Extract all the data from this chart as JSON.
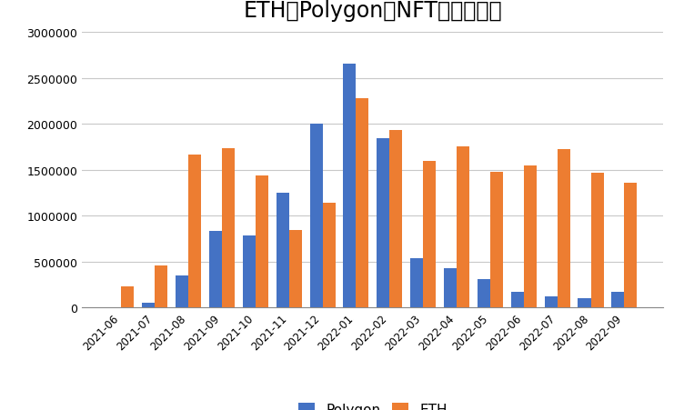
{
  "title": "ETH与Polygon的NFT交易量对比",
  "categories": [
    "2021-06",
    "2021-07",
    "2021-08",
    "2021-09",
    "2021-10",
    "2021-11",
    "2021-12",
    "2022-01",
    "2022-02",
    "2022-03",
    "2022-04",
    "2022-05",
    "2022-06",
    "2022-07",
    "2022-08",
    "2022-09"
  ],
  "polygon_values": [
    0,
    50000,
    350000,
    830000,
    780000,
    1250000,
    2000000,
    2650000,
    1840000,
    530000,
    430000,
    310000,
    170000,
    120000,
    95000,
    165000
  ],
  "eth_values": [
    230000,
    460000,
    1660000,
    1730000,
    1440000,
    840000,
    1140000,
    2280000,
    1930000,
    1590000,
    1750000,
    1480000,
    1550000,
    1720000,
    1470000,
    1360000
  ],
  "polygon_color": "#4472C4",
  "eth_color": "#ED7D31",
  "ylim": [
    0,
    3000000
  ],
  "yticks": [
    0,
    500000,
    1000000,
    1500000,
    2000000,
    2500000,
    3000000
  ],
  "background_color": "#FFFFFF",
  "grid_color": "#C8C8C8",
  "title_fontsize": 17,
  "legend_labels": [
    "Polygon",
    "ETH"
  ],
  "bar_width": 0.38
}
